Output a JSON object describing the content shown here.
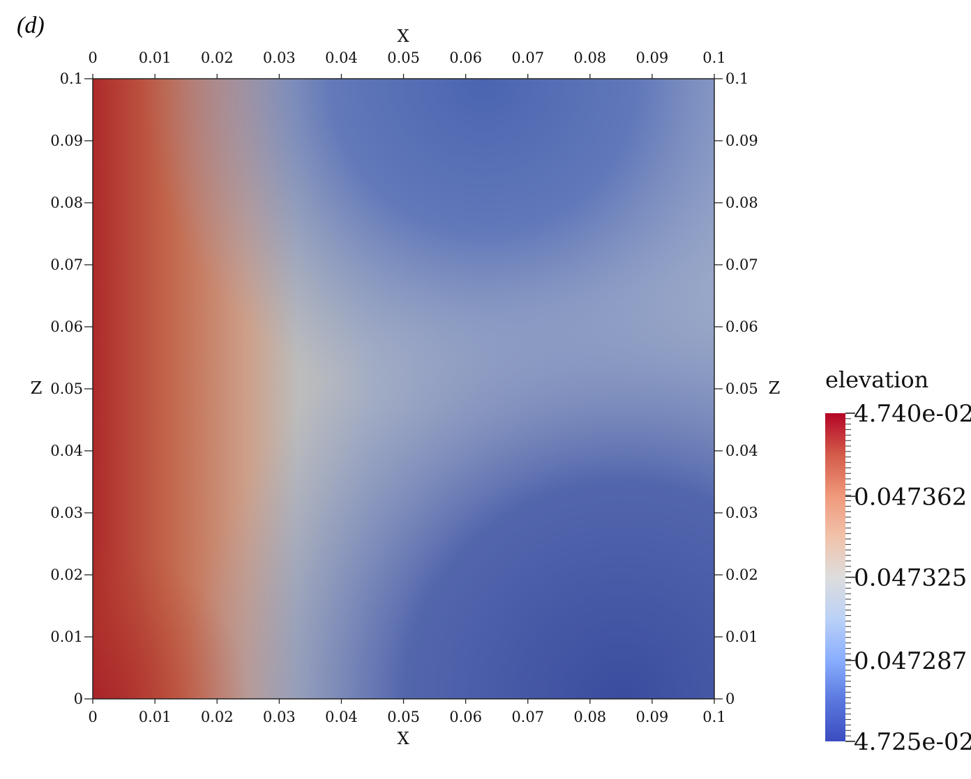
{
  "panel_label": "(d)",
  "chart_data": {
    "type": "heatmap",
    "xlabel": "X",
    "ylabel": "Z",
    "xlim": [
      0,
      0.1
    ],
    "ylim": [
      0,
      0.1
    ],
    "x_ticks": [
      "0",
      "0.01",
      "0.02",
      "0.03",
      "0.04",
      "0.05",
      "0.06",
      "0.07",
      "0.08",
      "0.09",
      "0.1"
    ],
    "y_ticks": [
      "0",
      "0.01",
      "0.02",
      "0.03",
      "0.04",
      "0.05",
      "0.06",
      "0.07",
      "0.08",
      "0.09",
      "0.1"
    ],
    "colorbar": {
      "title": "elevation",
      "min": 0.04725,
      "max": 0.0474,
      "labels": [
        {
          "text": "4.740e-02",
          "value": 0.0474
        },
        {
          "text": "0.047362",
          "value": 0.047362
        },
        {
          "text": "0.047325",
          "value": 0.047325
        },
        {
          "text": "0.047287",
          "value": 0.047287
        },
        {
          "text": "4.725e-02",
          "value": 0.04725
        }
      ],
      "colormap": [
        "#3b4cc0",
        "#6788ee",
        "#9abbff",
        "#c9d7f0",
        "#dddddd",
        "#f2cbb7",
        "#f7a889",
        "#e26952",
        "#b40426"
      ]
    },
    "field_colors": {
      "max": "#a92228",
      "warm": "#c8765a",
      "mid": "#b9b9b9",
      "cool": "#8a9cc6",
      "min": "#3a4c9e"
    }
  }
}
